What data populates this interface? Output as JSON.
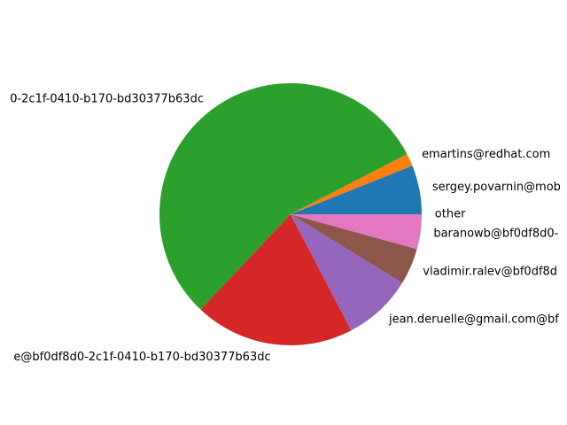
{
  "chart_data": {
    "type": "pie",
    "title": "",
    "slices": [
      {
        "label": "sergey.povarnin@mob",
        "value": 6.2,
        "color": "#1f77b4"
      },
      {
        "label": "emartins@redhat.com",
        "value": 1.6,
        "color": "#ff7f0e"
      },
      {
        "label": "0-2c1f-0410-b170-bd30377b63dc",
        "value": 56.8,
        "color": "#2ca02c"
      },
      {
        "label": "e@bf0df8d0-2c1f-0410-b170-bd30377b63dc",
        "value": 20.2,
        "color": "#d62728"
      },
      {
        "label": "jean.deruelle@gmail.com@bf",
        "value": 8.8,
        "color": "#9467bd"
      },
      {
        "label": "vladimir.ralev@bf0df8d",
        "value": 4.6,
        "color": "#8c564b"
      },
      {
        "label": "baranowb@bf0df8d0-",
        "value": 4.4,
        "color": "#e377c2"
      },
      {
        "label": "other",
        "value": 0.0,
        "color": "#7f7f7f"
      }
    ],
    "start_angle": 0,
    "direction": "counterclockwise"
  }
}
